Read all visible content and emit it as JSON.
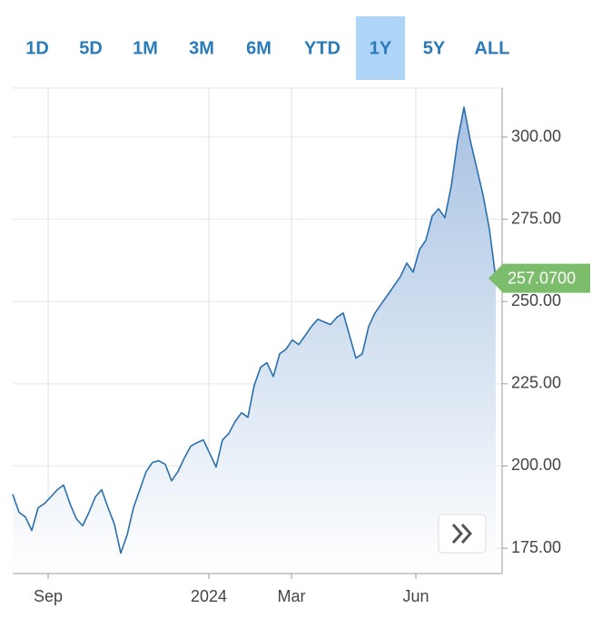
{
  "range_tabs": {
    "options": [
      "1D",
      "5D",
      "1M",
      "3M",
      "6M",
      "YTD",
      "1Y",
      "5Y",
      "ALL"
    ],
    "selected_index": 6
  },
  "chart_data": {
    "type": "area",
    "color": "#2a6fae",
    "fill_top": "#a7c2e2",
    "fill_bottom": "#ffffff",
    "label_color": "#7cbd6b",
    "values": [
      191.4,
      185.9,
      184.5,
      180.4,
      187.3,
      188.6,
      190.6,
      192.8,
      194.2,
      188.6,
      184.0,
      181.8,
      185.9,
      190.6,
      192.8,
      187.3,
      182.3,
      173.5,
      179.0,
      187.3,
      192.8,
      198.3,
      201.1,
      201.6,
      200.5,
      195.5,
      198.3,
      202.4,
      206.0,
      207.1,
      207.9,
      203.8,
      199.7,
      207.9,
      209.9,
      213.5,
      216.2,
      214.8,
      224.5,
      230.0,
      231.4,
      227.2,
      234.1,
      235.5,
      238.3,
      236.9,
      239.6,
      242.4,
      244.6,
      243.8,
      243.0,
      245.2,
      246.5,
      239.6,
      232.8,
      234.1,
      242.4,
      246.5,
      249.3,
      252.0,
      254.8,
      257.6,
      261.7,
      258.9,
      265.8,
      268.6,
      276.0,
      278.2,
      275.5,
      285.1,
      298.9,
      309.1,
      298.9,
      290.6,
      282.4,
      272.0,
      257.07
    ],
    "value_labels": [
      null,
      null,
      null,
      null,
      null,
      null,
      null,
      null,
      null,
      null,
      null,
      null,
      null,
      null,
      null,
      null,
      null,
      null,
      null,
      null,
      null,
      null,
      null,
      null,
      null,
      null,
      null,
      null,
      null,
      null,
      null,
      null,
      null,
      null,
      null,
      null,
      null,
      null,
      null,
      null,
      null,
      null,
      null,
      null,
      null,
      null,
      null,
      null,
      null,
      null,
      null,
      null,
      null,
      null,
      null,
      null,
      null,
      null,
      null,
      null,
      null,
      null,
      null,
      null,
      null,
      null,
      null,
      null,
      null,
      null,
      null,
      null,
      null,
      null,
      null,
      null,
      "257.0700"
    ],
    "xlim": [
      0,
      77
    ],
    "xticks": [
      {
        "value": 5.57,
        "label": "Sep"
      },
      {
        "value": 30.86,
        "label": "2024"
      },
      {
        "value": 43.86,
        "label": "Mar"
      },
      {
        "value": 63.43,
        "label": "Jun"
      }
    ],
    "ylim": [
      167.3,
      314.9
    ],
    "yticks": [
      {
        "value": 175,
        "label": "175.00"
      },
      {
        "value": 200,
        "label": "200.00"
      },
      {
        "value": 225,
        "label": "225.00"
      },
      {
        "value": 250,
        "label": "250.00"
      },
      {
        "value": 275,
        "label": "275.00"
      },
      {
        "value": 300,
        "label": "300.00"
      }
    ],
    "grid": true
  }
}
